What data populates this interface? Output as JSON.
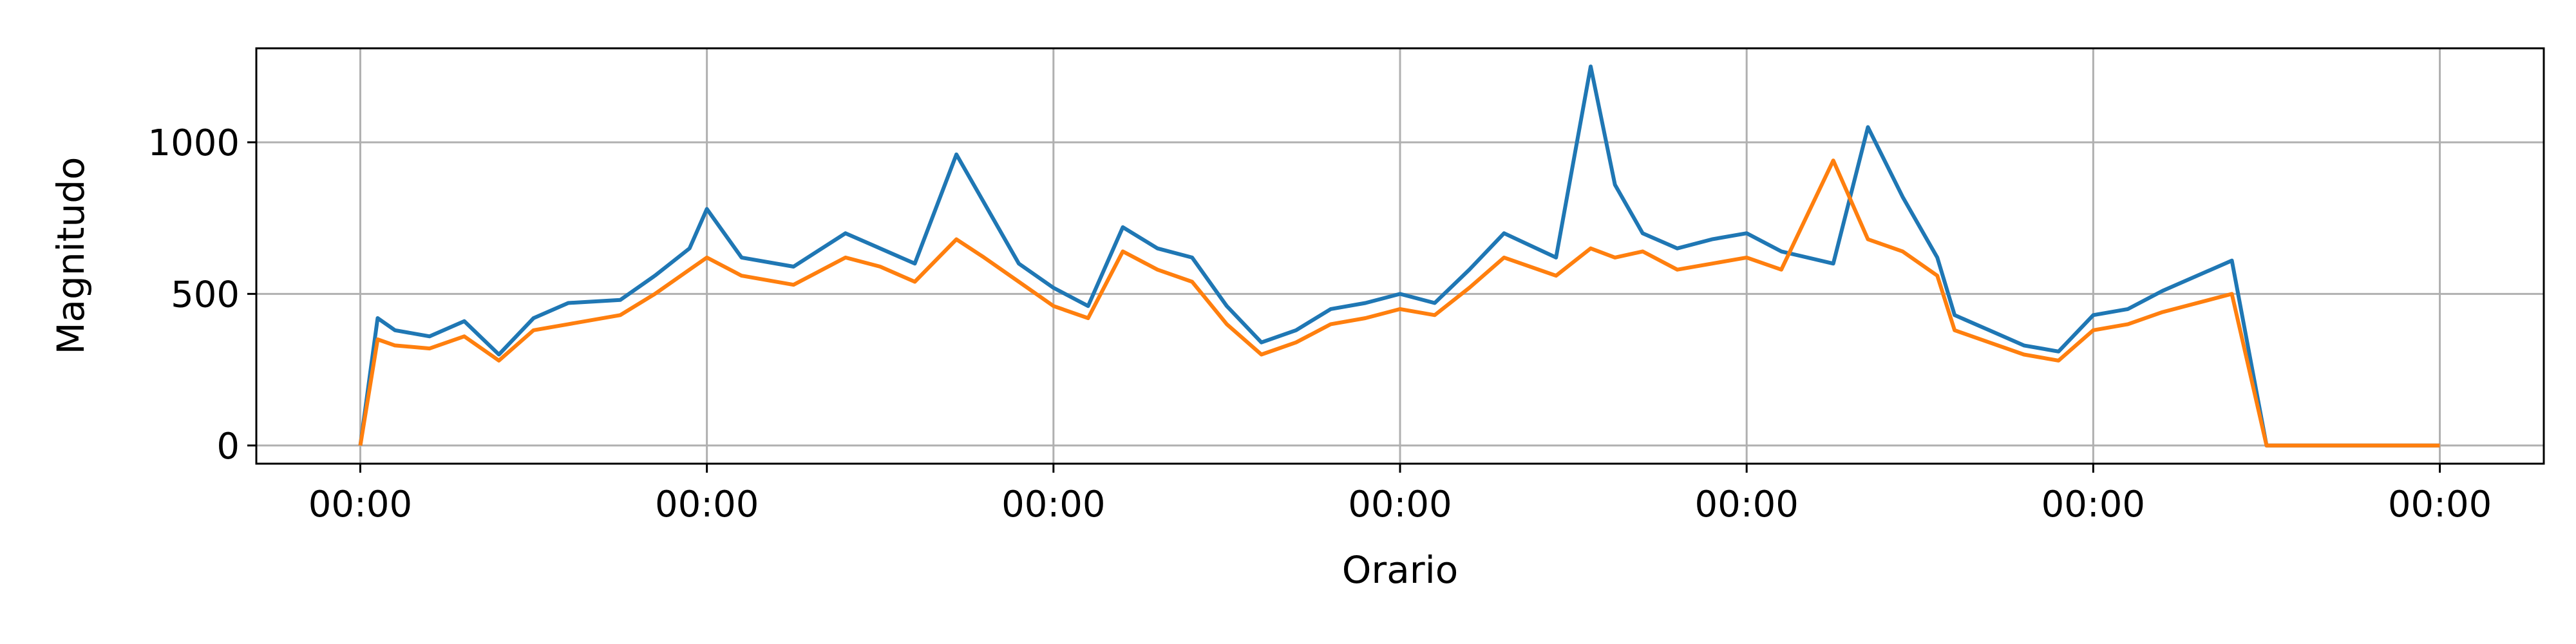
{
  "chart_data": {
    "type": "line",
    "xlabel": "Orario",
    "ylabel": "Magnitudo",
    "x_tick_labels": [
      "00:00",
      "00:00",
      "00:00",
      "00:00",
      "00:00",
      "00:00",
      "00:00"
    ],
    "y_ticks": [
      0,
      500,
      1000
    ],
    "xlim": [
      -0.3,
      6.3
    ],
    "ylim": [
      -60,
      1310
    ],
    "grid": true,
    "colors": {
      "series_1": "#1f77b4",
      "series_2": "#ff7f0e",
      "grid": "#b0b0b0",
      "axes": "#000000"
    },
    "series": [
      {
        "color": "#1f77b4",
        "points": [
          [
            0.0,
            0
          ],
          [
            0.05,
            420
          ],
          [
            0.1,
            380
          ],
          [
            0.2,
            360
          ],
          [
            0.3,
            410
          ],
          [
            0.4,
            300
          ],
          [
            0.5,
            420
          ],
          [
            0.6,
            470
          ],
          [
            0.75,
            480
          ],
          [
            0.85,
            560
          ],
          [
            0.95,
            650
          ],
          [
            1.0,
            780
          ],
          [
            1.1,
            620
          ],
          [
            1.25,
            590
          ],
          [
            1.4,
            700
          ],
          [
            1.5,
            650
          ],
          [
            1.6,
            600
          ],
          [
            1.72,
            960
          ],
          [
            1.8,
            800
          ],
          [
            1.9,
            600
          ],
          [
            2.0,
            520
          ],
          [
            2.1,
            460
          ],
          [
            2.2,
            720
          ],
          [
            2.3,
            650
          ],
          [
            2.4,
            620
          ],
          [
            2.5,
            460
          ],
          [
            2.6,
            340
          ],
          [
            2.7,
            380
          ],
          [
            2.8,
            450
          ],
          [
            2.9,
            470
          ],
          [
            3.0,
            500
          ],
          [
            3.1,
            470
          ],
          [
            3.2,
            580
          ],
          [
            3.3,
            700
          ],
          [
            3.45,
            620
          ],
          [
            3.55,
            1250
          ],
          [
            3.62,
            860
          ],
          [
            3.7,
            700
          ],
          [
            3.8,
            650
          ],
          [
            3.9,
            680
          ],
          [
            4.0,
            700
          ],
          [
            4.1,
            640
          ],
          [
            4.25,
            600
          ],
          [
            4.35,
            1050
          ],
          [
            4.45,
            820
          ],
          [
            4.55,
            620
          ],
          [
            4.6,
            430
          ],
          [
            4.7,
            380
          ],
          [
            4.8,
            330
          ],
          [
            4.9,
            310
          ],
          [
            5.0,
            430
          ],
          [
            5.1,
            450
          ],
          [
            5.2,
            510
          ],
          [
            5.4,
            610
          ],
          [
            5.5,
            0
          ],
          [
            5.6,
            0
          ],
          [
            5.8,
            0
          ],
          [
            6.0,
            0
          ]
        ]
      },
      {
        "color": "#ff7f0e",
        "points": [
          [
            0.0,
            0
          ],
          [
            0.05,
            350
          ],
          [
            0.1,
            330
          ],
          [
            0.2,
            320
          ],
          [
            0.3,
            360
          ],
          [
            0.4,
            280
          ],
          [
            0.5,
            380
          ],
          [
            0.6,
            400
          ],
          [
            0.75,
            430
          ],
          [
            0.85,
            500
          ],
          [
            0.95,
            580
          ],
          [
            1.0,
            620
          ],
          [
            1.1,
            560
          ],
          [
            1.25,
            530
          ],
          [
            1.4,
            620
          ],
          [
            1.5,
            590
          ],
          [
            1.6,
            540
          ],
          [
            1.72,
            680
          ],
          [
            1.8,
            620
          ],
          [
            1.9,
            540
          ],
          [
            2.0,
            460
          ],
          [
            2.1,
            420
          ],
          [
            2.2,
            640
          ],
          [
            2.3,
            580
          ],
          [
            2.4,
            540
          ],
          [
            2.5,
            400
          ],
          [
            2.6,
            300
          ],
          [
            2.7,
            340
          ],
          [
            2.8,
            400
          ],
          [
            2.9,
            420
          ],
          [
            3.0,
            450
          ],
          [
            3.1,
            430
          ],
          [
            3.2,
            520
          ],
          [
            3.3,
            620
          ],
          [
            3.45,
            560
          ],
          [
            3.55,
            650
          ],
          [
            3.62,
            620
          ],
          [
            3.7,
            640
          ],
          [
            3.8,
            580
          ],
          [
            3.9,
            600
          ],
          [
            4.0,
            620
          ],
          [
            4.1,
            580
          ],
          [
            4.25,
            940
          ],
          [
            4.35,
            680
          ],
          [
            4.45,
            640
          ],
          [
            4.55,
            560
          ],
          [
            4.6,
            380
          ],
          [
            4.7,
            340
          ],
          [
            4.8,
            300
          ],
          [
            4.9,
            280
          ],
          [
            5.0,
            380
          ],
          [
            5.1,
            400
          ],
          [
            5.2,
            440
          ],
          [
            5.4,
            500
          ],
          [
            5.5,
            0
          ],
          [
            5.6,
            0
          ],
          [
            5.8,
            0
          ],
          [
            6.0,
            0
          ]
        ]
      }
    ]
  }
}
